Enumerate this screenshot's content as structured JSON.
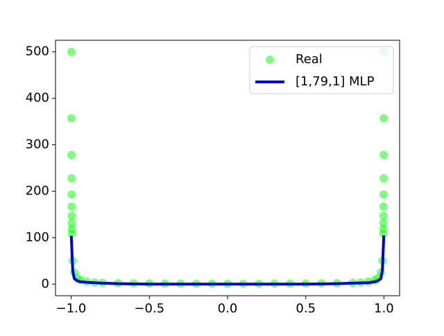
{
  "chart_data": {
    "type": "scatter-line",
    "xlim": [
      -1.1,
      1.1
    ],
    "ylim": [
      -25,
      525
    ],
    "xticks": [
      {
        "value": -1.0,
        "label": "−1.0"
      },
      {
        "value": -0.5,
        "label": "−0.5"
      },
      {
        "value": 0,
        "label": "0.0"
      },
      {
        "value": 0.5,
        "label": "0.5"
      },
      {
        "value": 1.0,
        "label": "1.0"
      }
    ],
    "yticks": [
      0,
      100,
      200,
      300,
      400,
      500
    ],
    "legend": "upper right",
    "series": [
      {
        "name": "Real",
        "type": "scatter",
        "color": "#00ff00",
        "x": [
          -0.999,
          -0.9986,
          -0.9982,
          -0.9978,
          -0.9974,
          -0.997,
          -0.9966,
          -0.9962,
          -0.9958,
          -0.9954,
          -0.99,
          -0.98,
          -0.96,
          -0.94,
          -0.9,
          -0.85,
          -0.8,
          -0.7,
          -0.6,
          -0.5,
          -0.4,
          -0.3,
          -0.2,
          -0.1,
          0,
          0.1,
          0.2,
          0.3,
          0.4,
          0.5,
          0.6,
          0.7,
          0.8,
          0.85,
          0.9,
          0.94,
          0.96,
          0.98,
          0.99,
          0.9954,
          0.9958,
          0.9962,
          0.9966,
          0.997,
          0.9974,
          0.9978,
          0.9982,
          0.9986,
          0.999
        ],
        "values": [
          500,
          357,
          278,
          228,
          193,
          167,
          147,
          132,
          119,
          109,
          50.3,
          25.3,
          12.8,
          8.6,
          5.3,
          3.6,
          2.8,
          1.96,
          1.56,
          1.33,
          1.19,
          1.1,
          1.04,
          1.01,
          1,
          1.01,
          1.04,
          1.1,
          1.19,
          1.33,
          1.56,
          1.96,
          2.8,
          3.6,
          5.3,
          8.6,
          12.8,
          25.3,
          50.3,
          109,
          119,
          132,
          147,
          167,
          193,
          228,
          278,
          357,
          500
        ]
      },
      {
        "name": "[1,79,1] MLP",
        "type": "line",
        "color": "#0000cc",
        "x": [
          -0.999,
          -0.99,
          -0.98,
          -0.96,
          -0.94,
          -0.9,
          -0.8,
          -0.7,
          -0.5,
          0,
          0.5,
          0.7,
          0.8,
          0.9,
          0.94,
          0.96,
          0.98,
          0.99,
          0.999
        ],
        "values": [
          104,
          30,
          12,
          7,
          5,
          4,
          2,
          1,
          0,
          0,
          0,
          1,
          2,
          3,
          5,
          7,
          12,
          30,
          105
        ]
      }
    ]
  }
}
